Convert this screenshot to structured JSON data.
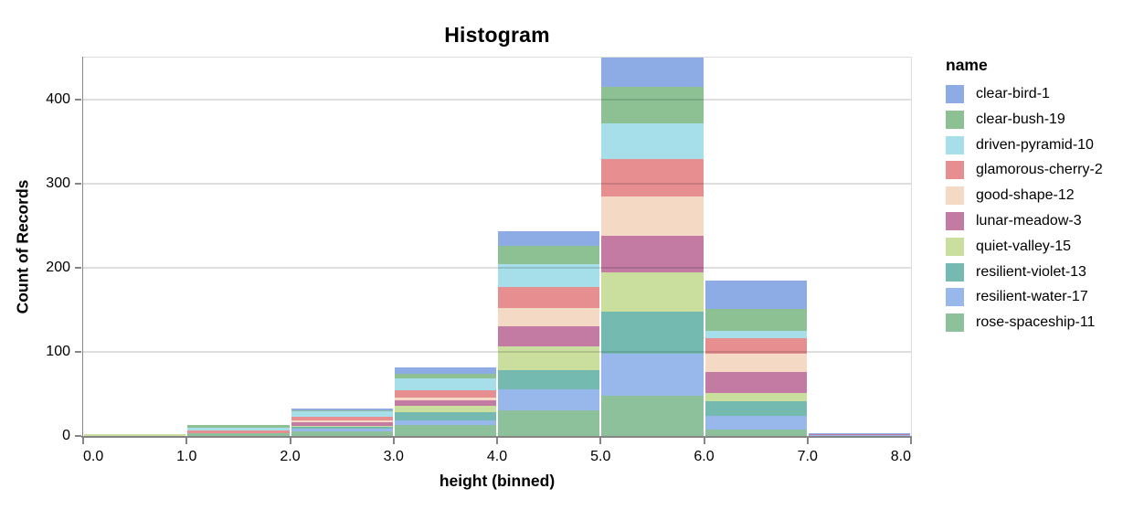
{
  "chart_data": {
    "type": "bar",
    "variant": "stacked-histogram",
    "title": "Histogram",
    "xlabel": "height (binned)",
    "ylabel": "Count of Records",
    "legend_title": "name",
    "legend_position": "right",
    "grid": true,
    "xlim": [
      0,
      8
    ],
    "ylim": [
      0,
      450
    ],
    "bin_edges": [
      0,
      1,
      2,
      3,
      4,
      5,
      6,
      7,
      8
    ],
    "x_tick_labels": [
      "0.0",
      "1.0",
      "2.0",
      "3.0",
      "4.0",
      "5.0",
      "6.0",
      "7.0",
      "8.0"
    ],
    "y_ticks": [
      0,
      100,
      200,
      300,
      400
    ],
    "stack_order": "first legend entry on top, last legend entry at bottom",
    "series": [
      {
        "name": "clear-bird-1",
        "color": "#8dabe4",
        "values": [
          0,
          0,
          3,
          8,
          18,
          36,
          34,
          1
        ]
      },
      {
        "name": "clear-bush-19",
        "color": "#8dc194",
        "values": [
          0,
          3,
          1,
          6,
          22,
          43,
          26,
          0
        ]
      },
      {
        "name": "driven-pyramid-10",
        "color": "#a6dee9",
        "values": [
          0,
          3,
          6,
          14,
          27,
          43,
          9,
          0
        ]
      },
      {
        "name": "glamorous-cherry-2",
        "color": "#e68e90",
        "values": [
          0,
          4,
          4,
          8,
          25,
          44,
          18,
          0
        ]
      },
      {
        "name": "good-shape-12",
        "color": "#f4d9c4",
        "values": [
          0,
          0,
          3,
          4,
          22,
          47,
          22,
          0
        ]
      },
      {
        "name": "lunar-meadow-3",
        "color": "#c37ba3",
        "values": [
          0,
          0,
          4,
          6,
          23,
          43,
          25,
          1
        ]
      },
      {
        "name": "quiet-valley-15",
        "color": "#cade9e",
        "values": [
          2,
          0,
          1,
          8,
          29,
          47,
          10,
          0
        ]
      },
      {
        "name": "resilient-violet-13",
        "color": "#74bab1",
        "values": [
          0,
          0,
          2,
          9,
          23,
          50,
          17,
          0
        ]
      },
      {
        "name": "resilient-water-17",
        "color": "#98b7ea",
        "values": [
          0,
          0,
          4,
          6,
          25,
          50,
          16,
          1
        ]
      },
      {
        "name": "rose-spaceship-11",
        "color": "#8cc19b",
        "values": [
          0,
          3,
          5,
          13,
          30,
          48,
          8,
          0
        ]
      }
    ],
    "bin_totals": [
      2,
      13,
      33,
      82,
      244,
      451,
      185,
      3
    ],
    "style": {
      "background": "#ffffff",
      "grid_color": "#dddddd",
      "axis_color": "#858585",
      "label_color": "#000000"
    }
  }
}
